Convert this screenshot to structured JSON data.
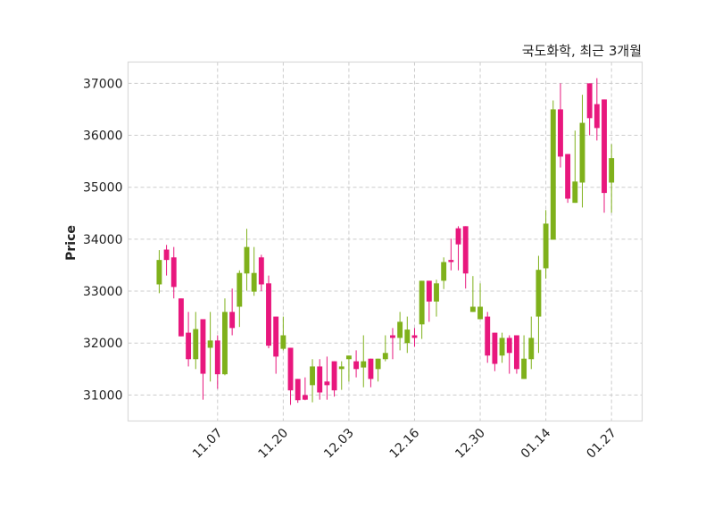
{
  "chart_data": {
    "type": "candlestick",
    "title": "국도화학, 최근 3개월",
    "xlabel": "",
    "ylabel": "Price",
    "ylim": [
      30500,
      37410
    ],
    "yticks": [
      31000,
      32000,
      33000,
      34000,
      35000,
      36000,
      37000
    ],
    "xticks": [
      {
        "index": 8,
        "label": "11.07"
      },
      {
        "index": 17,
        "label": "11.20"
      },
      {
        "index": 26,
        "label": "12.03"
      },
      {
        "index": 35,
        "label": "12.16"
      },
      {
        "index": 44,
        "label": "12.30"
      },
      {
        "index": 53,
        "label": "01.14"
      },
      {
        "index": 62,
        "label": "01.27"
      }
    ],
    "grid": true,
    "colors": {
      "up": "#7fb11b",
      "down": "#e8177d",
      "grid": "#cccccc",
      "frame": "#d9d9d9"
    },
    "ohlc": [
      [
        33130,
        33790,
        32960,
        33600
      ],
      [
        33800,
        33890,
        33300,
        33600
      ],
      [
        33650,
        33850,
        32860,
        33080
      ],
      [
        32860,
        32860,
        32130,
        32130
      ],
      [
        32200,
        32600,
        31550,
        31690
      ],
      [
        31690,
        32600,
        31500,
        32270
      ],
      [
        32460,
        32460,
        30910,
        31410
      ],
      [
        31910,
        32600,
        31260,
        32050
      ],
      [
        32050,
        32150,
        31120,
        31400
      ],
      [
        31400,
        32860,
        31380,
        32600
      ],
      [
        32600,
        33050,
        32150,
        32290
      ],
      [
        32700,
        33400,
        32310,
        33350
      ],
      [
        33340,
        34200,
        33010,
        33850
      ],
      [
        32990,
        33850,
        32910,
        33350
      ],
      [
        33650,
        33700,
        33000,
        33130
      ],
      [
        33150,
        33300,
        31900,
        31950
      ],
      [
        32510,
        32510,
        31410,
        31740
      ],
      [
        31890,
        32510,
        31860,
        32150
      ],
      [
        31910,
        31910,
        30810,
        31090
      ],
      [
        31310,
        31310,
        30850,
        30900
      ],
      [
        31000,
        31340,
        30900,
        30910
      ],
      [
        31190,
        31690,
        30860,
        31550
      ],
      [
        31550,
        31690,
        30910,
        31050
      ],
      [
        31260,
        31740,
        30910,
        31190
      ],
      [
        31650,
        31650,
        30970,
        31090
      ],
      [
        31500,
        31650,
        31100,
        31550
      ],
      [
        31690,
        31760,
        31260,
        31760
      ],
      [
        31650,
        31860,
        31340,
        31500
      ],
      [
        31530,
        32150,
        31150,
        31650
      ],
      [
        31700,
        31700,
        31150,
        31310
      ],
      [
        31500,
        31700,
        31260,
        31700
      ],
      [
        31690,
        32150,
        31650,
        31810
      ],
      [
        32150,
        32290,
        31690,
        32100
      ],
      [
        32100,
        32600,
        31860,
        32410
      ],
      [
        32000,
        32510,
        31810,
        32260
      ],
      [
        32150,
        32290,
        31930,
        32100
      ],
      [
        32360,
        33200,
        32080,
        33200
      ],
      [
        33200,
        33200,
        32410,
        32800
      ],
      [
        32800,
        33220,
        32510,
        33150
      ],
      [
        33200,
        33650,
        33040,
        33560
      ],
      [
        33600,
        34010,
        33400,
        33560
      ],
      [
        34210,
        34250,
        33400,
        33900
      ],
      [
        34250,
        34250,
        33050,
        33340
      ],
      [
        32600,
        33290,
        32600,
        32700
      ],
      [
        32460,
        33150,
        32460,
        32700
      ],
      [
        32510,
        32600,
        31620,
        31760
      ],
      [
        32200,
        32200,
        31460,
        31600
      ],
      [
        31760,
        32200,
        31620,
        32100
      ],
      [
        32100,
        32150,
        31410,
        31810
      ],
      [
        32150,
        32150,
        31410,
        31500
      ],
      [
        31310,
        32150,
        31310,
        31700
      ],
      [
        31690,
        32510,
        31500,
        32100
      ],
      [
        32510,
        33680,
        31810,
        33410
      ],
      [
        33440,
        34560,
        33240,
        34300
      ],
      [
        33990,
        36670,
        33990,
        36500
      ],
      [
        36500,
        37000,
        35380,
        35590
      ],
      [
        35640,
        35640,
        34700,
        34780
      ],
      [
        34700,
        36090,
        34700,
        35110
      ],
      [
        35090,
        36780,
        34610,
        36240
      ],
      [
        37000,
        37000,
        36000,
        36330
      ],
      [
        36600,
        37100,
        35900,
        36140
      ],
      [
        36690,
        36690,
        34510,
        34890
      ],
      [
        35090,
        35830,
        34510,
        35560
      ]
    ]
  }
}
